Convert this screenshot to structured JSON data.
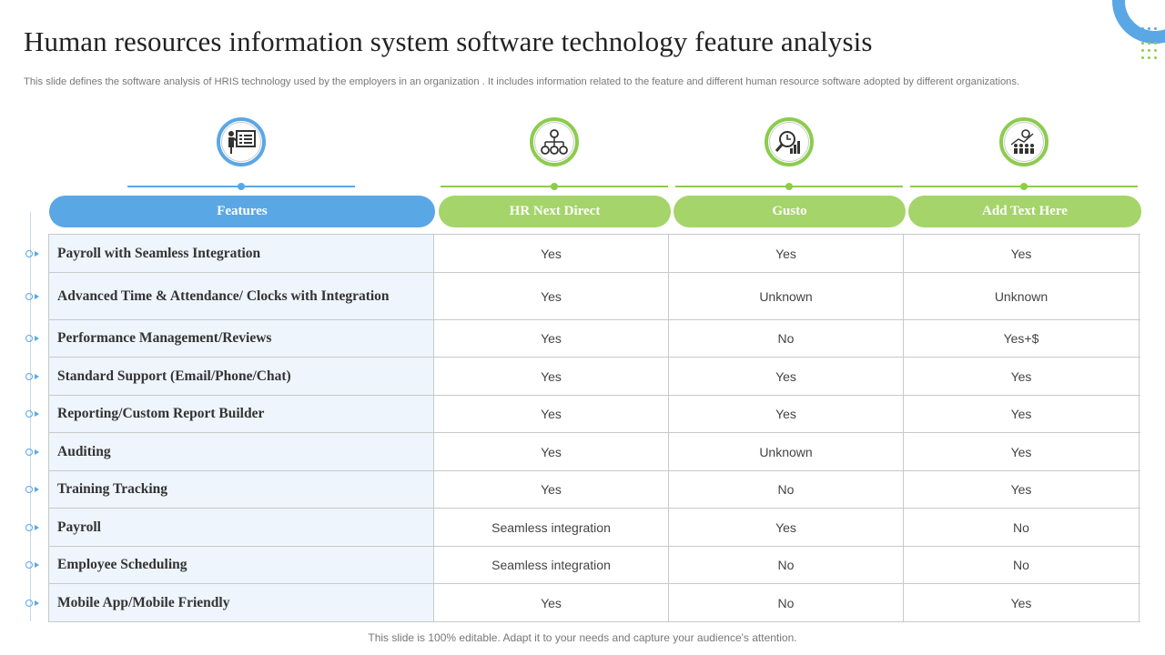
{
  "title": "Human resources information system software technology feature analysis",
  "subtitle": "This slide defines the software analysis of HRIS technology used by the employers in an organization .  It includes information related to the feature and different human resource software adopted by different organizations.",
  "footer": "This slide is 100% editable. Adapt it to your needs and capture your audience's attention.",
  "colors": {
    "blue": "#5aa7e6",
    "green": "#a5d46a"
  },
  "columns": [
    {
      "label": "Features",
      "icon": "presentation-board-icon"
    },
    {
      "label": "HR Next Direct",
      "icon": "org-chart-icon"
    },
    {
      "label": "Gusto",
      "icon": "analytics-magnifier-icon"
    },
    {
      "label": "Add Text Here",
      "icon": "team-growth-icon"
    }
  ],
  "rows": [
    {
      "feature": "Payroll with Seamless Integration",
      "values": [
        "Yes",
        "Yes",
        "Yes"
      ]
    },
    {
      "feature": "Advanced Time & Attendance/ Clocks with Integration",
      "values": [
        "Yes",
        "Unknown",
        "Unknown"
      ]
    },
    {
      "feature": "Performance Management/Reviews",
      "values": [
        "Yes",
        "No",
        "Yes+$"
      ]
    },
    {
      "feature": "Standard Support (Email/Phone/Chat)",
      "values": [
        "Yes",
        "Yes",
        "Yes"
      ]
    },
    {
      "feature": "Reporting/Custom Report Builder",
      "values": [
        "Yes",
        "Yes",
        "Yes"
      ]
    },
    {
      "feature": "Auditing",
      "values": [
        "Yes",
        "Unknown",
        "Yes"
      ]
    },
    {
      "feature": "Training Tracking",
      "values": [
        "Yes",
        "No",
        "Yes"
      ]
    },
    {
      "feature": "Payroll",
      "values": [
        "Seamless integration",
        "Yes",
        "No"
      ]
    },
    {
      "feature": "Employee Scheduling",
      "values": [
        "Seamless integration",
        "No",
        "No"
      ]
    },
    {
      "feature": "Mobile App/Mobile Friendly",
      "values": [
        "Yes",
        "No",
        "Yes"
      ]
    }
  ]
}
